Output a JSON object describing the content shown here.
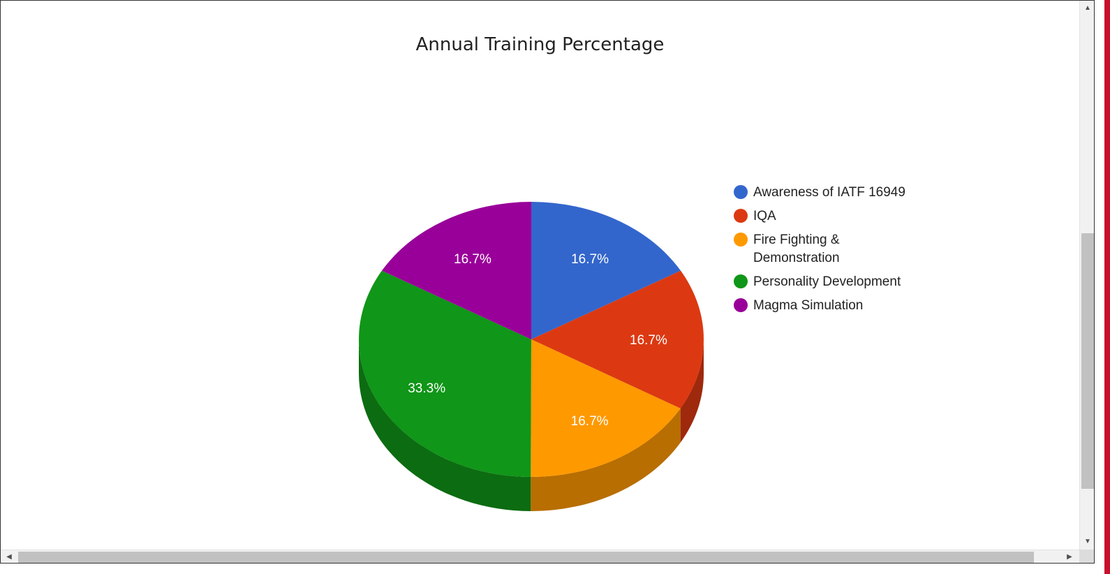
{
  "chart_data": {
    "type": "pie",
    "title": "Annual Training Percentage",
    "is3D": true,
    "legend_position": "right",
    "slices": [
      {
        "label": "Awareness of IATF 16949",
        "value": 16.7,
        "display": "16.7%",
        "color": "#3366cc"
      },
      {
        "label": "IQA",
        "value": 16.7,
        "display": "16.7%",
        "color": "#dc3912"
      },
      {
        "label": "Fire Fighting & Demonstration",
        "value": 16.7,
        "display": "16.7%",
        "color": "#ff9900"
      },
      {
        "label": "Personality Development",
        "value": 33.3,
        "display": "33.3%",
        "color": "#109618"
      },
      {
        "label": "Magma Simulation",
        "value": 16.7,
        "display": "16.7%",
        "color": "#990099"
      }
    ]
  },
  "scrollbars": {
    "up_icon": "▲",
    "down_icon": "▼",
    "left_icon": "◀",
    "right_icon": "▶"
  }
}
